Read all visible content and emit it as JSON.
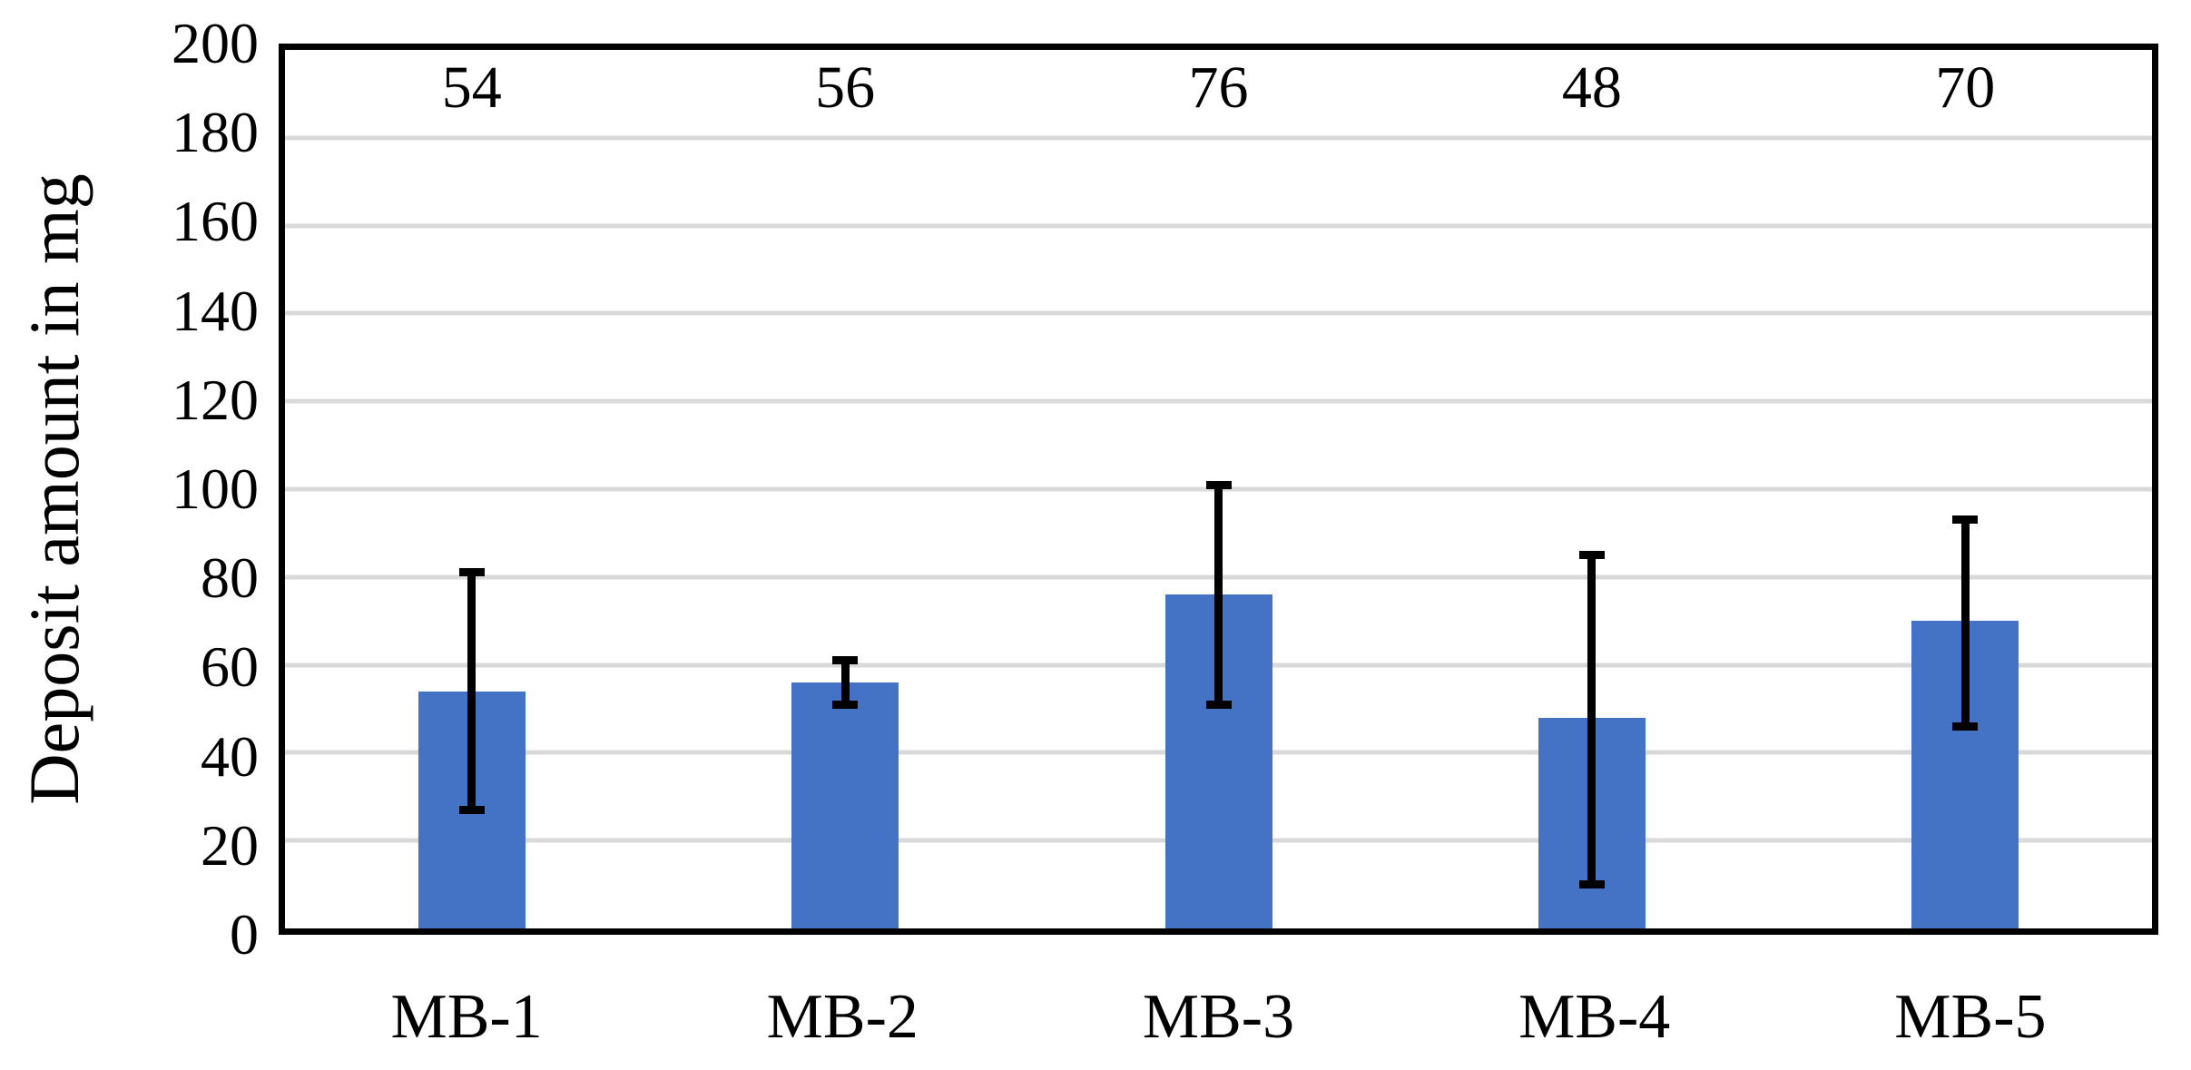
{
  "chart_data": {
    "type": "bar",
    "title": "",
    "xlabel": "",
    "ylabel": "Deposit amount in mg",
    "categories": [
      "MB-1",
      "MB-2",
      "MB-3",
      "MB-4",
      "MB-5"
    ],
    "values": [
      54,
      56,
      76,
      48,
      70
    ],
    "value_labels": [
      "54",
      "56",
      "76",
      "48",
      "70"
    ],
    "error_bars": {
      "low": [
        27,
        51,
        51,
        10,
        46
      ],
      "high": [
        81,
        61,
        101,
        85,
        93
      ]
    },
    "ylim": [
      0,
      200
    ],
    "ytick_step": 20,
    "yticks": [
      0,
      20,
      40,
      60,
      80,
      100,
      120,
      140,
      160,
      180,
      200
    ],
    "grid": "horizontal",
    "legend": "none",
    "colors": {
      "bar_fill": "#4472C4",
      "gridline": "#D9D9D9",
      "axis_border": "#000000",
      "error_bar": "#000000",
      "background": "#FFFFFF",
      "text": "#000000"
    }
  }
}
